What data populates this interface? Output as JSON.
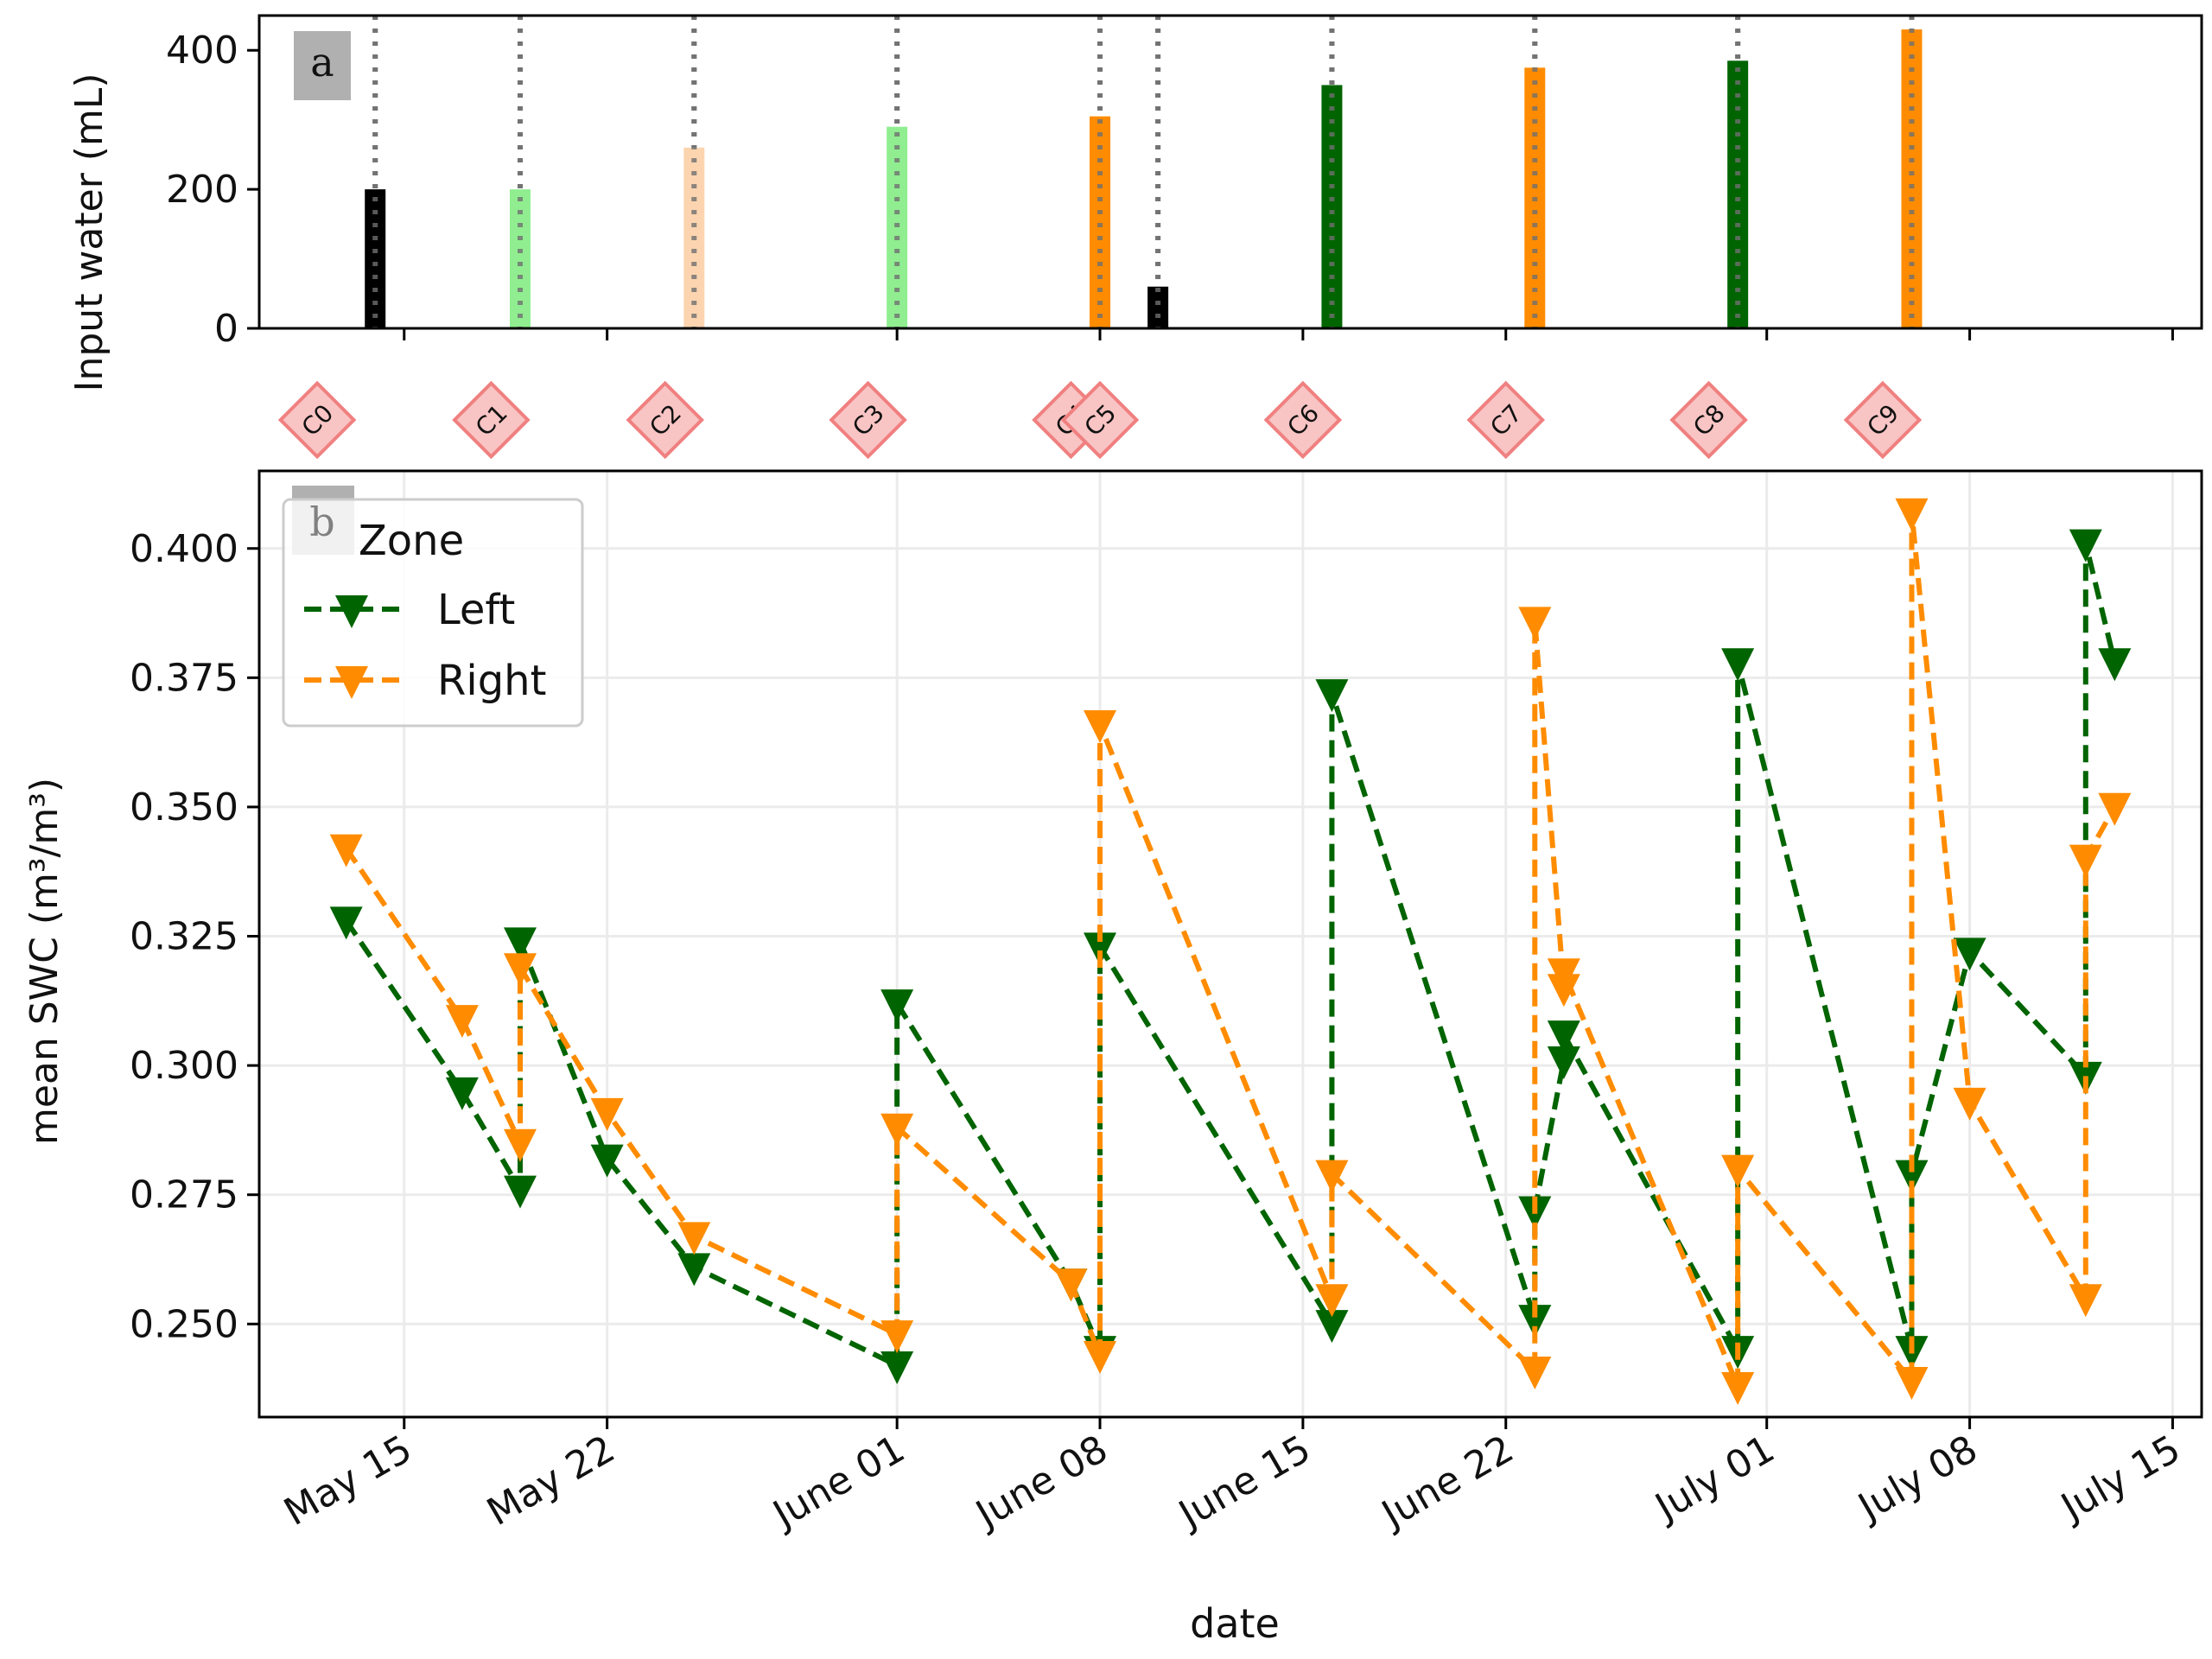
{
  "colors": {
    "left": "#006400",
    "right": "#ff8c00",
    "black": "#000000",
    "light_green": "#90ee90",
    "light_orange": "#fcd5b0",
    "grid": "#ebebeb",
    "tag_fill": "#f9c4c4",
    "tag_stroke": "#f08080",
    "panel_label_bg": "#b0b0b0"
  },
  "chart_data": [
    {
      "type": "bar",
      "panel_label": "a",
      "title": "",
      "xlabel": "",
      "ylabel": "Input water (mL)",
      "ylim": [
        0,
        450
      ],
      "yticks": [
        0,
        200,
        400
      ],
      "bars": [
        {
          "date": "2023-05-14",
          "value": 200,
          "color": "black"
        },
        {
          "date": "2023-05-19",
          "value": 200,
          "color": "light_green"
        },
        {
          "date": "2023-05-25",
          "value": 260,
          "color": "light_orange"
        },
        {
          "date": "2023-06-01",
          "value": 290,
          "color": "light_green"
        },
        {
          "date": "2023-06-08",
          "value": 305,
          "color": "right"
        },
        {
          "date": "2023-06-10",
          "value": 60,
          "color": "black"
        },
        {
          "date": "2023-06-16",
          "value": 350,
          "color": "left"
        },
        {
          "date": "2023-06-23",
          "value": 375,
          "color": "right"
        },
        {
          "date": "2023-06-30",
          "value": 385,
          "color": "left"
        },
        {
          "date": "2023-07-06",
          "value": 430,
          "color": "right"
        }
      ],
      "event_lines": [
        "2023-05-14",
        "2023-05-19",
        "2023-05-25",
        "2023-06-01",
        "2023-06-08",
        "2023-06-10",
        "2023-06-16",
        "2023-06-23",
        "2023-06-30",
        "2023-07-06"
      ]
    },
    {
      "type": "line",
      "panel_label": "b",
      "title": "",
      "xlabel": "date",
      "ylabel": "mean SWC (m³/m³)",
      "ylim": [
        0.232,
        0.415
      ],
      "yticks": [
        0.25,
        0.275,
        0.3,
        0.325,
        0.35,
        0.375,
        0.4
      ],
      "ytick_labels": [
        "0.250",
        "0.275",
        "0.300",
        "0.325",
        "0.350",
        "0.375",
        "0.400"
      ],
      "xlim": [
        "2023-05-10",
        "2023-07-16"
      ],
      "xticks": [
        "2023-05-15",
        "2023-05-22",
        "2023-06-01",
        "2023-06-08",
        "2023-06-15",
        "2023-06-22",
        "2023-07-01",
        "2023-07-08",
        "2023-07-15"
      ],
      "xtick_labels": [
        "May 15",
        "May 22",
        "June 01",
        "June 08",
        "June 15",
        "June 22",
        "July 01",
        "July 08",
        "July 15"
      ],
      "grid": true,
      "legend": {
        "title": "Zone",
        "position": "upper-left"
      },
      "series": [
        {
          "name": "Left",
          "color": "left",
          "marker": "triangle-down",
          "linestyle": "dashed",
          "points": [
            [
              "2023-05-13",
              0.328
            ],
            [
              "2023-05-17",
              0.295
            ],
            [
              "2023-05-19",
              0.276
            ],
            [
              "2023-05-19",
              0.324
            ],
            [
              "2023-05-22",
              0.282
            ],
            [
              "2023-05-25",
              0.261
            ],
            [
              "2023-06-01",
              0.242
            ],
            [
              "2023-06-01",
              0.312
            ],
            [
              "2023-06-07",
              0.258
            ],
            [
              "2023-06-08",
              0.245
            ],
            [
              "2023-06-08",
              0.323
            ],
            [
              "2023-06-16",
              0.25
            ],
            [
              "2023-06-16",
              0.372
            ],
            [
              "2023-06-23",
              0.251
            ],
            [
              "2023-06-23",
              0.272
            ],
            [
              "2023-06-24",
              0.301
            ],
            [
              "2023-06-24",
              0.306
            ],
            [
              "2023-06-30",
              0.245
            ],
            [
              "2023-06-30",
              0.378
            ],
            [
              "2023-07-06",
              0.245
            ],
            [
              "2023-07-06",
              0.279
            ],
            [
              "2023-07-08",
              0.322
            ],
            [
              "2023-07-12",
              0.298
            ],
            [
              "2023-07-12",
              0.401
            ],
            [
              "2023-07-13",
              0.378
            ]
          ]
        },
        {
          "name": "Right",
          "color": "right",
          "marker": "triangle-down",
          "linestyle": "dashed",
          "points": [
            [
              "2023-05-13",
              0.342
            ],
            [
              "2023-05-17",
              0.309
            ],
            [
              "2023-05-19",
              0.285
            ],
            [
              "2023-05-19",
              0.319
            ],
            [
              "2023-05-22",
              0.291
            ],
            [
              "2023-05-25",
              0.267
            ],
            [
              "2023-06-01",
              0.248
            ],
            [
              "2023-06-01",
              0.288
            ],
            [
              "2023-06-07",
              0.258
            ],
            [
              "2023-06-08",
              0.244
            ],
            [
              "2023-06-08",
              0.366
            ],
            [
              "2023-06-16",
              0.255
            ],
            [
              "2023-06-16",
              0.279
            ],
            [
              "2023-06-23",
              0.241
            ],
            [
              "2023-06-23",
              0.386
            ],
            [
              "2023-06-24",
              0.315
            ],
            [
              "2023-06-24",
              0.318
            ],
            [
              "2023-06-30",
              0.238
            ],
            [
              "2023-06-30",
              0.28
            ],
            [
              "2023-07-06",
              0.239
            ],
            [
              "2023-07-06",
              0.407
            ],
            [
              "2023-07-08",
              0.293
            ],
            [
              "2023-07-12",
              0.255
            ],
            [
              "2023-07-12",
              0.34
            ],
            [
              "2023-07-13",
              0.35
            ]
          ]
        }
      ]
    }
  ],
  "cycle_tags": [
    {
      "label": "C0",
      "date": "2023-05-12"
    },
    {
      "label": "C1",
      "date": "2023-05-18"
    },
    {
      "label": "C2",
      "date": "2023-05-24"
    },
    {
      "label": "C3",
      "date": "2023-05-31"
    },
    {
      "label": "C4",
      "date": "2023-06-07"
    },
    {
      "label": "C5",
      "date": "2023-06-08"
    },
    {
      "label": "C6",
      "date": "2023-06-15"
    },
    {
      "label": "C7",
      "date": "2023-06-22"
    },
    {
      "label": "C8",
      "date": "2023-06-29"
    },
    {
      "label": "C9",
      "date": "2023-07-05"
    }
  ]
}
